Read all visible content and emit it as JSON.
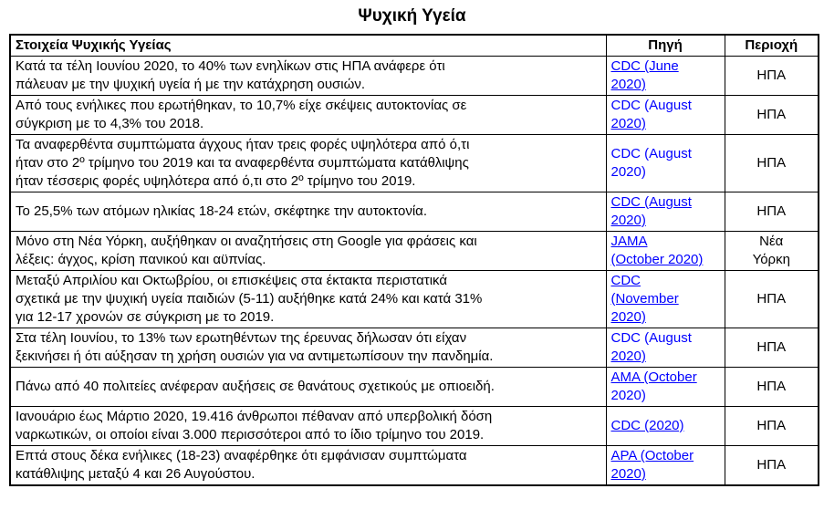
{
  "title": "Ψυχική Υγεία",
  "link_color": "#0000ff",
  "text_color": "#000000",
  "border_color": "#000000",
  "table": {
    "headers": [
      "Στοιχεία Ψυχικής Υγείας",
      "Πηγή",
      "Περιοχή"
    ],
    "rows": [
      {
        "fact": "Κατά τα τέλη Ιουνίου 2020, το 40% των ενηλίκων στις ΗΠΑ ανάφερε ότι\nπάλευαν με την ψυχική υγεία ή με την κατάχρηση ουσιών.",
        "source_lines": [
          {
            "text": "CDC (June",
            "underline": true
          },
          {
            "text": "2020)",
            "underline": true
          }
        ],
        "region": "ΗΠΑ"
      },
      {
        "fact": "Από τους ενήλικες που ερωτήθηκαν, το 10,7% είχε σκέψεις αυτοκτονίας σε\nσύγκριση με το 4,3% του 2018.",
        "source_lines": [
          {
            "text": "CDC (August",
            "underline": false
          },
          {
            "text": "2020)",
            "underline": true
          }
        ],
        "region": "ΗΠΑ"
      },
      {
        "fact": "Τα αναφερθέντα συμπτώματα άγχους ήταν τρεις φορές υψηλότερα από ό,τι\nήταν στο 2º τρίμηνο του 2019 και τα αναφερθέντα συμπτώματα κατάθλιψης\nήταν τέσσερις φορές υψηλότερα από ό,τι στο 2º τρίμηνο του 2019.",
        "source_lines": [
          {
            "text": "CDC (August",
            "underline": false
          },
          {
            "text": "2020)",
            "underline": false
          }
        ],
        "region": "ΗΠΑ"
      },
      {
        "fact": "Το 25,5% των ατόμων ηλικίας 18-24 ετών, σκέφτηκε την αυτοκτονία.",
        "source_lines": [
          {
            "text": "CDC (August",
            "underline": true
          },
          {
            "text": "2020)",
            "underline": true
          }
        ],
        "region": "ΗΠΑ"
      },
      {
        "fact": "Μόνο στη Νέα Υόρκη, αυξήθηκαν οι αναζητήσεις στη Google για φράσεις και\nλέξεις: άγχος, κρίση πανικού και αϋπνίας.",
        "source_lines": [
          {
            "text": "JAMA",
            "underline": true
          },
          {
            "text": "(October 2020)",
            "underline": true
          }
        ],
        "region": "Νέα\nΥόρκη"
      },
      {
        "fact": "Μεταξύ Απριλίου και Οκτωβρίου, οι επισκέψεις στα έκτακτα περιστατικά\nσχετικά με την ψυχική υγεία παιδιών (5-11) αυξήθηκε κατά 24% και κατά 31%\nγια 12-17 χρονών σε σύγκριση με το 2019.",
        "source_lines": [
          {
            "text": "CDC",
            "underline": true
          },
          {
            "text": "(November",
            "underline": true
          },
          {
            "text": "2020)",
            "underline": true
          }
        ],
        "region": "ΗΠΑ"
      },
      {
        "fact": "Στα τέλη Ιουνίου, το 13% των ερωτηθέντων της έρευνας δήλωσαν ότι είχαν\nξεκινήσει ή ότι αύξησαν τη χρήση ουσιών για να αντιμετωπίσουν την πανδημία.",
        "source_lines": [
          {
            "text": "CDC (August",
            "underline": false
          },
          {
            "text": "2020)",
            "underline": true
          }
        ],
        "region": "ΗΠΑ"
      },
      {
        "fact": "Πάνω από 40 πολιτείες ανέφεραν αυξήσεις σε θανάτους σχετικούς με οπιοειδή.",
        "source_lines": [
          {
            "text": "AMA (October",
            "underline": true
          },
          {
            "text": "2020)",
            "underline": false
          }
        ],
        "region": "ΗΠΑ"
      },
      {
        "fact": "Ιανουάριο έως Μάρτιο 2020, 19.416 άνθρωποι πέθαναν από υπερβολική δόση\nναρκωτικών, οι οποίοι είναι 3.000 περισσότεροι από το ίδιο τρίμηνο του 2019.",
        "source_lines": [
          {
            "text": "CDC (2020)",
            "underline": true
          }
        ],
        "region": "ΗΠΑ"
      },
      {
        "fact": "Επτά στους δέκα ενήλικες (18-23) αναφέρθηκε ότι εμφάνισαν συμπτώματα\nκατάθλιψης μεταξύ 4 και 26 Αυγούστου.",
        "source_lines": [
          {
            "text": "APA (October",
            "underline": true
          },
          {
            "text": "2020)",
            "underline": true
          }
        ],
        "region": "ΗΠΑ"
      }
    ]
  }
}
